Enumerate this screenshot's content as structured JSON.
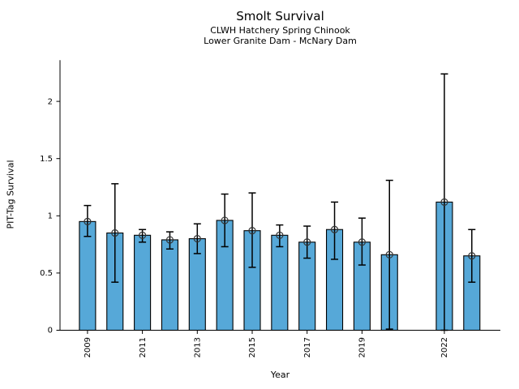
{
  "chart_data": {
    "type": "bar",
    "title": "Smolt Survival",
    "subtitle_line1": "CLWH Hatchery Spring Chinook",
    "subtitle_line2": "Lower Granite Dam - McNary Dam",
    "xlabel": "Year",
    "ylabel": "PIT-Tag Survival",
    "grid": false,
    "legend": null,
    "error_bars": true,
    "marker": "open-circle",
    "bar_color": "#56a8d8",
    "bar_edge_color": "#000000",
    "error_color": "#000000",
    "marker_color": "#333333",
    "axis_color": "#000000",
    "xlim": [
      2008,
      2024
    ],
    "ylim": [
      0,
      2.36
    ],
    "yticks": [
      0,
      0.5,
      1,
      1.5,
      2
    ],
    "ytick_labels": [
      "0",
      "0.5",
      "1",
      "1.5",
      "2"
    ],
    "xticks": [
      2009,
      2011,
      2013,
      2015,
      2017,
      2019,
      2022
    ],
    "xtick_labels": [
      "2009",
      "2011",
      "2013",
      "2015",
      "2017",
      "2019",
      "2022"
    ],
    "points": [
      {
        "year": 2009,
        "survival": 0.95,
        "ci_low": 0.82,
        "ci_high": 1.09
      },
      {
        "year": 2010,
        "survival": 0.85,
        "ci_low": 0.42,
        "ci_high": 1.28
      },
      {
        "year": 2011,
        "survival": 0.83,
        "ci_low": 0.77,
        "ci_high": 0.88
      },
      {
        "year": 2012,
        "survival": 0.79,
        "ci_low": 0.71,
        "ci_high": 0.86
      },
      {
        "year": 2013,
        "survival": 0.8,
        "ci_low": 0.67,
        "ci_high": 0.93
      },
      {
        "year": 2014,
        "survival": 0.96,
        "ci_low": 0.73,
        "ci_high": 1.19
      },
      {
        "year": 2015,
        "survival": 0.87,
        "ci_low": 0.55,
        "ci_high": 1.2
      },
      {
        "year": 2016,
        "survival": 0.83,
        "ci_low": 0.73,
        "ci_high": 0.92
      },
      {
        "year": 2017,
        "survival": 0.77,
        "ci_low": 0.63,
        "ci_high": 0.91
      },
      {
        "year": 2018,
        "survival": 0.88,
        "ci_low": 0.62,
        "ci_high": 1.12
      },
      {
        "year": 2019,
        "survival": 0.77,
        "ci_low": 0.57,
        "ci_high": 0.98
      },
      {
        "year": 2020,
        "survival": 0.66,
        "ci_low": 0.01,
        "ci_high": 1.31
      },
      {
        "year": 2022,
        "survival": 1.12,
        "ci_low": 0.0,
        "ci_high": 2.24
      },
      {
        "year": 2023,
        "survival": 0.65,
        "ci_low": 0.42,
        "ci_high": 0.88
      }
    ]
  }
}
